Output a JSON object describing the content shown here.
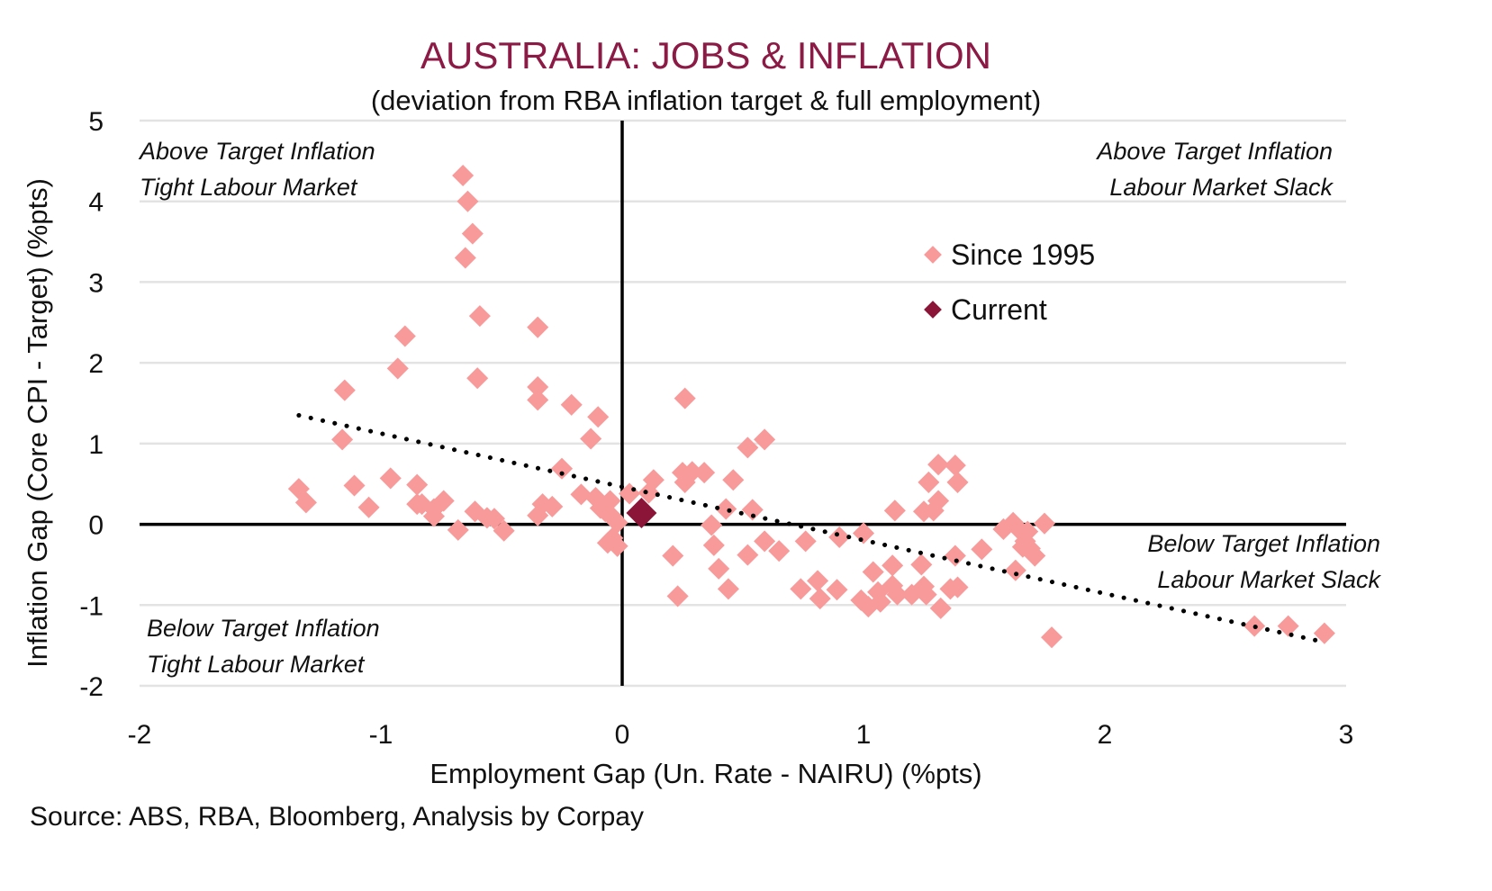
{
  "chart_data": {
    "type": "scatter",
    "title": "AUSTRALIA: JOBS & INFLATION",
    "subtitle": "(deviation from RBA inflation target & full employment)",
    "xlabel": "Employment Gap (Un. Rate - NAIRU) (%pts)",
    "ylabel": "Inflation Gap (Core CPI - Target) (%pts)",
    "xlim": [
      -2,
      3
    ],
    "ylim": [
      -2,
      5
    ],
    "xticks": [
      "-2",
      "-1",
      "0",
      "1",
      "2",
      "3"
    ],
    "yticks": [
      "5",
      "4",
      "3",
      "2",
      "1",
      "0",
      "-1",
      "-2"
    ],
    "grid": "horizontal",
    "legend_position": "upper-right-center",
    "quadrant_labels": {
      "top_left": [
        "Above Target Inflation",
        "Tight Labour Market"
      ],
      "top_right": [
        "Above Target Inflation",
        "Labour Market Slack"
      ],
      "bottom_right": [
        "Below Target Inflation",
        "Labour Market Slack"
      ],
      "bottom_left": [
        "Below Target Inflation",
        "Tight Labour Market"
      ]
    },
    "series": [
      {
        "name": "Since 1995",
        "color": "#F99A9A",
        "marker": "diamond",
        "points": [
          [
            -0.66,
            4.32
          ],
          [
            -0.64,
            4.0
          ],
          [
            -0.62,
            3.6
          ],
          [
            -0.65,
            3.3
          ],
          [
            -0.59,
            2.58
          ],
          [
            -0.9,
            2.33
          ],
          [
            -0.35,
            2.44
          ],
          [
            -0.93,
            1.93
          ],
          [
            -0.6,
            1.81
          ],
          [
            -1.15,
            1.66
          ],
          [
            -0.35,
            1.7
          ],
          [
            -0.35,
            1.54
          ],
          [
            -0.21,
            1.48
          ],
          [
            -0.1,
            1.33
          ],
          [
            0.26,
            1.56
          ],
          [
            -1.16,
            1.05
          ],
          [
            -0.13,
            1.06
          ],
          [
            0.59,
            1.05
          ],
          [
            0.52,
            0.95
          ],
          [
            -1.34,
            0.44
          ],
          [
            -1.31,
            0.27
          ],
          [
            -1.11,
            0.48
          ],
          [
            -1.05,
            0.21
          ],
          [
            -0.96,
            0.57
          ],
          [
            -0.85,
            0.49
          ],
          [
            -0.85,
            0.25
          ],
          [
            -0.83,
            0.25
          ],
          [
            -0.78,
            0.19
          ],
          [
            -0.74,
            0.29
          ],
          [
            -0.78,
            0.1
          ],
          [
            -0.68,
            -0.07
          ],
          [
            -0.61,
            0.16
          ],
          [
            -0.56,
            0.08
          ],
          [
            -0.53,
            0.07
          ],
          [
            -0.49,
            -0.08
          ],
          [
            -0.35,
            0.11
          ],
          [
            -0.33,
            0.25
          ],
          [
            -0.29,
            0.22
          ],
          [
            -0.25,
            0.69
          ],
          [
            -0.17,
            0.37
          ],
          [
            -0.11,
            0.33
          ],
          [
            -0.09,
            0.2
          ],
          [
            -0.07,
            0.16
          ],
          [
            -0.05,
            0.29
          ],
          [
            -0.04,
            0.09
          ],
          [
            -0.02,
            0.02
          ],
          [
            -0.06,
            -0.23
          ],
          [
            -0.02,
            -0.27
          ],
          [
            -0.04,
            -0.17
          ],
          [
            0.03,
            0.38
          ],
          [
            0.13,
            0.55
          ],
          [
            0.11,
            0.39
          ],
          [
            0.21,
            -0.39
          ],
          [
            0.23,
            -0.89
          ],
          [
            0.25,
            0.64
          ],
          [
            0.26,
            0.52
          ],
          [
            0.29,
            0.65
          ],
          [
            0.34,
            0.64
          ],
          [
            0.37,
            -0.01
          ],
          [
            0.38,
            -0.26
          ],
          [
            0.4,
            -0.55
          ],
          [
            0.43,
            0.19
          ],
          [
            0.44,
            -0.8
          ],
          [
            0.46,
            0.55
          ],
          [
            0.52,
            -0.38
          ],
          [
            0.54,
            0.18
          ],
          [
            0.59,
            -0.21
          ],
          [
            0.65,
            -0.33
          ],
          [
            0.74,
            -0.8
          ],
          [
            0.76,
            -0.21
          ],
          [
            0.81,
            -0.7
          ],
          [
            0.82,
            -0.92
          ],
          [
            0.89,
            -0.81
          ],
          [
            0.9,
            -0.16
          ],
          [
            1.0,
            -0.11
          ],
          [
            0.99,
            -0.94
          ],
          [
            1.02,
            -1.02
          ],
          [
            1.04,
            -0.59
          ],
          [
            1.06,
            -0.84
          ],
          [
            1.07,
            -0.96
          ],
          [
            1.12,
            -0.51
          ],
          [
            1.13,
            0.17
          ],
          [
            1.12,
            -0.76
          ],
          [
            1.14,
            -0.87
          ],
          [
            1.2,
            -0.87
          ],
          [
            1.24,
            -0.5
          ],
          [
            1.25,
            -0.77
          ],
          [
            1.26,
            -0.87
          ],
          [
            1.25,
            0.16
          ],
          [
            1.27,
            0.52
          ],
          [
            1.29,
            0.17
          ],
          [
            1.31,
            0.29
          ],
          [
            1.31,
            0.74
          ],
          [
            1.32,
            -1.04
          ],
          [
            1.36,
            -0.8
          ],
          [
            1.38,
            0.73
          ],
          [
            1.39,
            0.52
          ],
          [
            1.38,
            -0.39
          ],
          [
            1.39,
            -0.78
          ],
          [
            1.49,
            -0.31
          ],
          [
            1.58,
            -0.06
          ],
          [
            1.62,
            0.02
          ],
          [
            1.63,
            -0.57
          ],
          [
            1.65,
            -0.08
          ],
          [
            1.67,
            -0.21
          ],
          [
            1.68,
            -0.09
          ],
          [
            1.66,
            -0.28
          ],
          [
            1.69,
            -0.3
          ],
          [
            1.71,
            -0.39
          ],
          [
            1.75,
            0.01
          ],
          [
            1.78,
            -1.4
          ],
          [
            2.62,
            -1.26
          ],
          [
            2.76,
            -1.26
          ],
          [
            2.91,
            -1.35
          ]
        ]
      },
      {
        "name": "Current",
        "color": "#8B1538",
        "marker": "diamond",
        "points": [
          [
            0.08,
            0.14
          ]
        ]
      }
    ],
    "trendline": {
      "style": "dotted",
      "color": "#000000",
      "x_range": [
        -1.34,
        2.91
      ],
      "slope": -0.661,
      "intercept": 0.464
    }
  },
  "source": "Source: ABS, RBA, Bloomberg, Analysis by Corpay"
}
